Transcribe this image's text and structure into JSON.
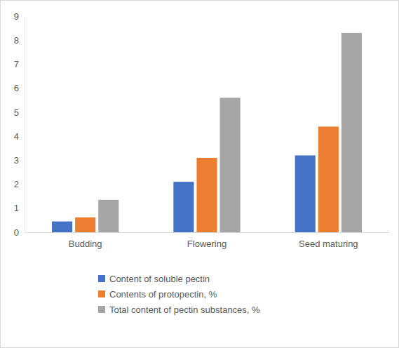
{
  "chart_data": {
    "type": "bar",
    "categories": [
      "Budding",
      "Flowering",
      "Seed maturing"
    ],
    "series": [
      {
        "name": "Content of soluble pectin",
        "color": "#4472c4",
        "values": [
          0.45,
          2.1,
          3.2
        ]
      },
      {
        "name": "Contents of protopectin, %",
        "color": "#ed7d31",
        "values": [
          0.62,
          3.1,
          4.4
        ]
      },
      {
        "name": "Total content of pectin substances, %",
        "color": "#a5a5a5",
        "values": [
          1.35,
          5.6,
          8.3
        ]
      }
    ],
    "ylim": [
      0,
      9
    ],
    "yticks": [
      0,
      1,
      2,
      3,
      4,
      5,
      6,
      7,
      8,
      9
    ],
    "grid": false,
    "legend": "bottom"
  }
}
